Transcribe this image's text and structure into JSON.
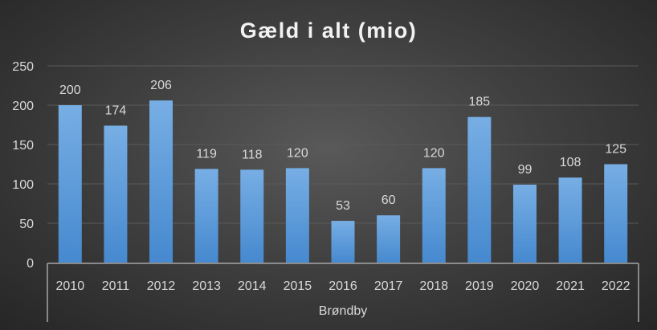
{
  "chart_data": {
    "type": "bar",
    "title": "Gæld i alt (mio)",
    "categories": [
      "2010",
      "2011",
      "2012",
      "2013",
      "2014",
      "2015",
      "2016",
      "2017",
      "2018",
      "2019",
      "2020",
      "2021",
      "2022"
    ],
    "group_label": "Brøndby",
    "values": [
      200,
      174,
      206,
      119,
      118,
      120,
      53,
      60,
      120,
      185,
      99,
      108,
      125
    ],
    "ylim": [
      0,
      250
    ],
    "yticks": [
      0,
      50,
      100,
      150,
      200,
      250
    ],
    "grid": true,
    "xlabel": "",
    "ylabel": "",
    "colors": {
      "bar_top": "#77aee4",
      "bar_bottom": "#4689cf",
      "grid": "#5a5a5a",
      "text": "#d9d9d9",
      "axis": "#a6a6a6"
    }
  }
}
